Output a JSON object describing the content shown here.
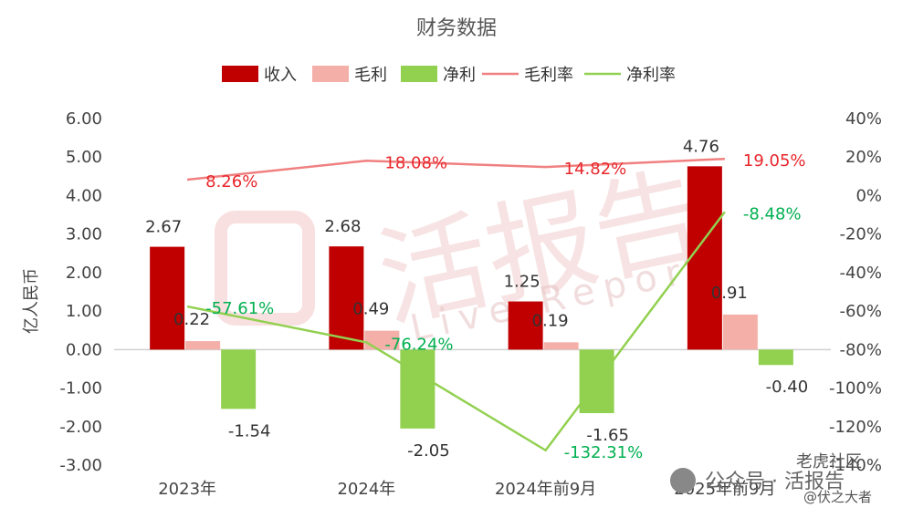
{
  "chart_data": {
    "type": "bar",
    "title": "财务数据",
    "ylabel": "亿人民币",
    "categories": [
      "2023年",
      "2024年",
      "2024年前9月",
      "2025年前9月"
    ],
    "ylim": [
      -3,
      6
    ],
    "y2lim": [
      -140,
      40
    ],
    "yticks": [
      "6.00",
      "5.00",
      "4.00",
      "3.00",
      "2.00",
      "1.00",
      "0.00",
      "-1.00",
      "-2.00",
      "-3.00"
    ],
    "y2ticks": [
      "40%",
      "20%",
      "0%",
      "-20%",
      "-40%",
      "-60%",
      "-80%",
      "-100%",
      "-120%",
      "-140%"
    ],
    "legend_position": "top",
    "series": [
      {
        "name": "收入",
        "kind": "bar",
        "color": "#c00000",
        "values": [
          2.67,
          2.68,
          1.25,
          4.76
        ],
        "labels": [
          "2.67",
          "2.68",
          "1.25",
          "4.76"
        ]
      },
      {
        "name": "毛利",
        "kind": "bar",
        "color": "#f4b0a8",
        "values": [
          0.22,
          0.49,
          0.19,
          0.91
        ],
        "labels": [
          "0.22",
          "0.49",
          "0.19",
          "0.91"
        ]
      },
      {
        "name": "净利",
        "kind": "bar",
        "color": "#92d050",
        "values": [
          -1.54,
          -2.05,
          -1.65,
          -0.4
        ],
        "labels": [
          "-1.54",
          "-2.05",
          "-1.65",
          "-0.40"
        ]
      },
      {
        "name": "毛利率",
        "kind": "line",
        "axis": "right",
        "color": "#f08080",
        "label_color": "#e8272c",
        "values": [
          8.26,
          18.08,
          14.82,
          19.05
        ],
        "labels": [
          "8.26%",
          "18.08%",
          "14.82%",
          "19.05%"
        ]
      },
      {
        "name": "净利率",
        "kind": "line",
        "axis": "right",
        "color": "#92d050",
        "label_color": "#00b050",
        "values": [
          -57.61,
          -76.24,
          -132.31,
          -8.48
        ],
        "labels": [
          "-57.61%",
          "-76.24%",
          "-132.31%",
          "-8.48%"
        ]
      }
    ]
  },
  "watermark": {
    "main": "活报告",
    "sub": "Live Report",
    "footer_left": "公众号 · 活报告",
    "footer_right": "老虎社区",
    "footer_user": "@伏之大者"
  }
}
